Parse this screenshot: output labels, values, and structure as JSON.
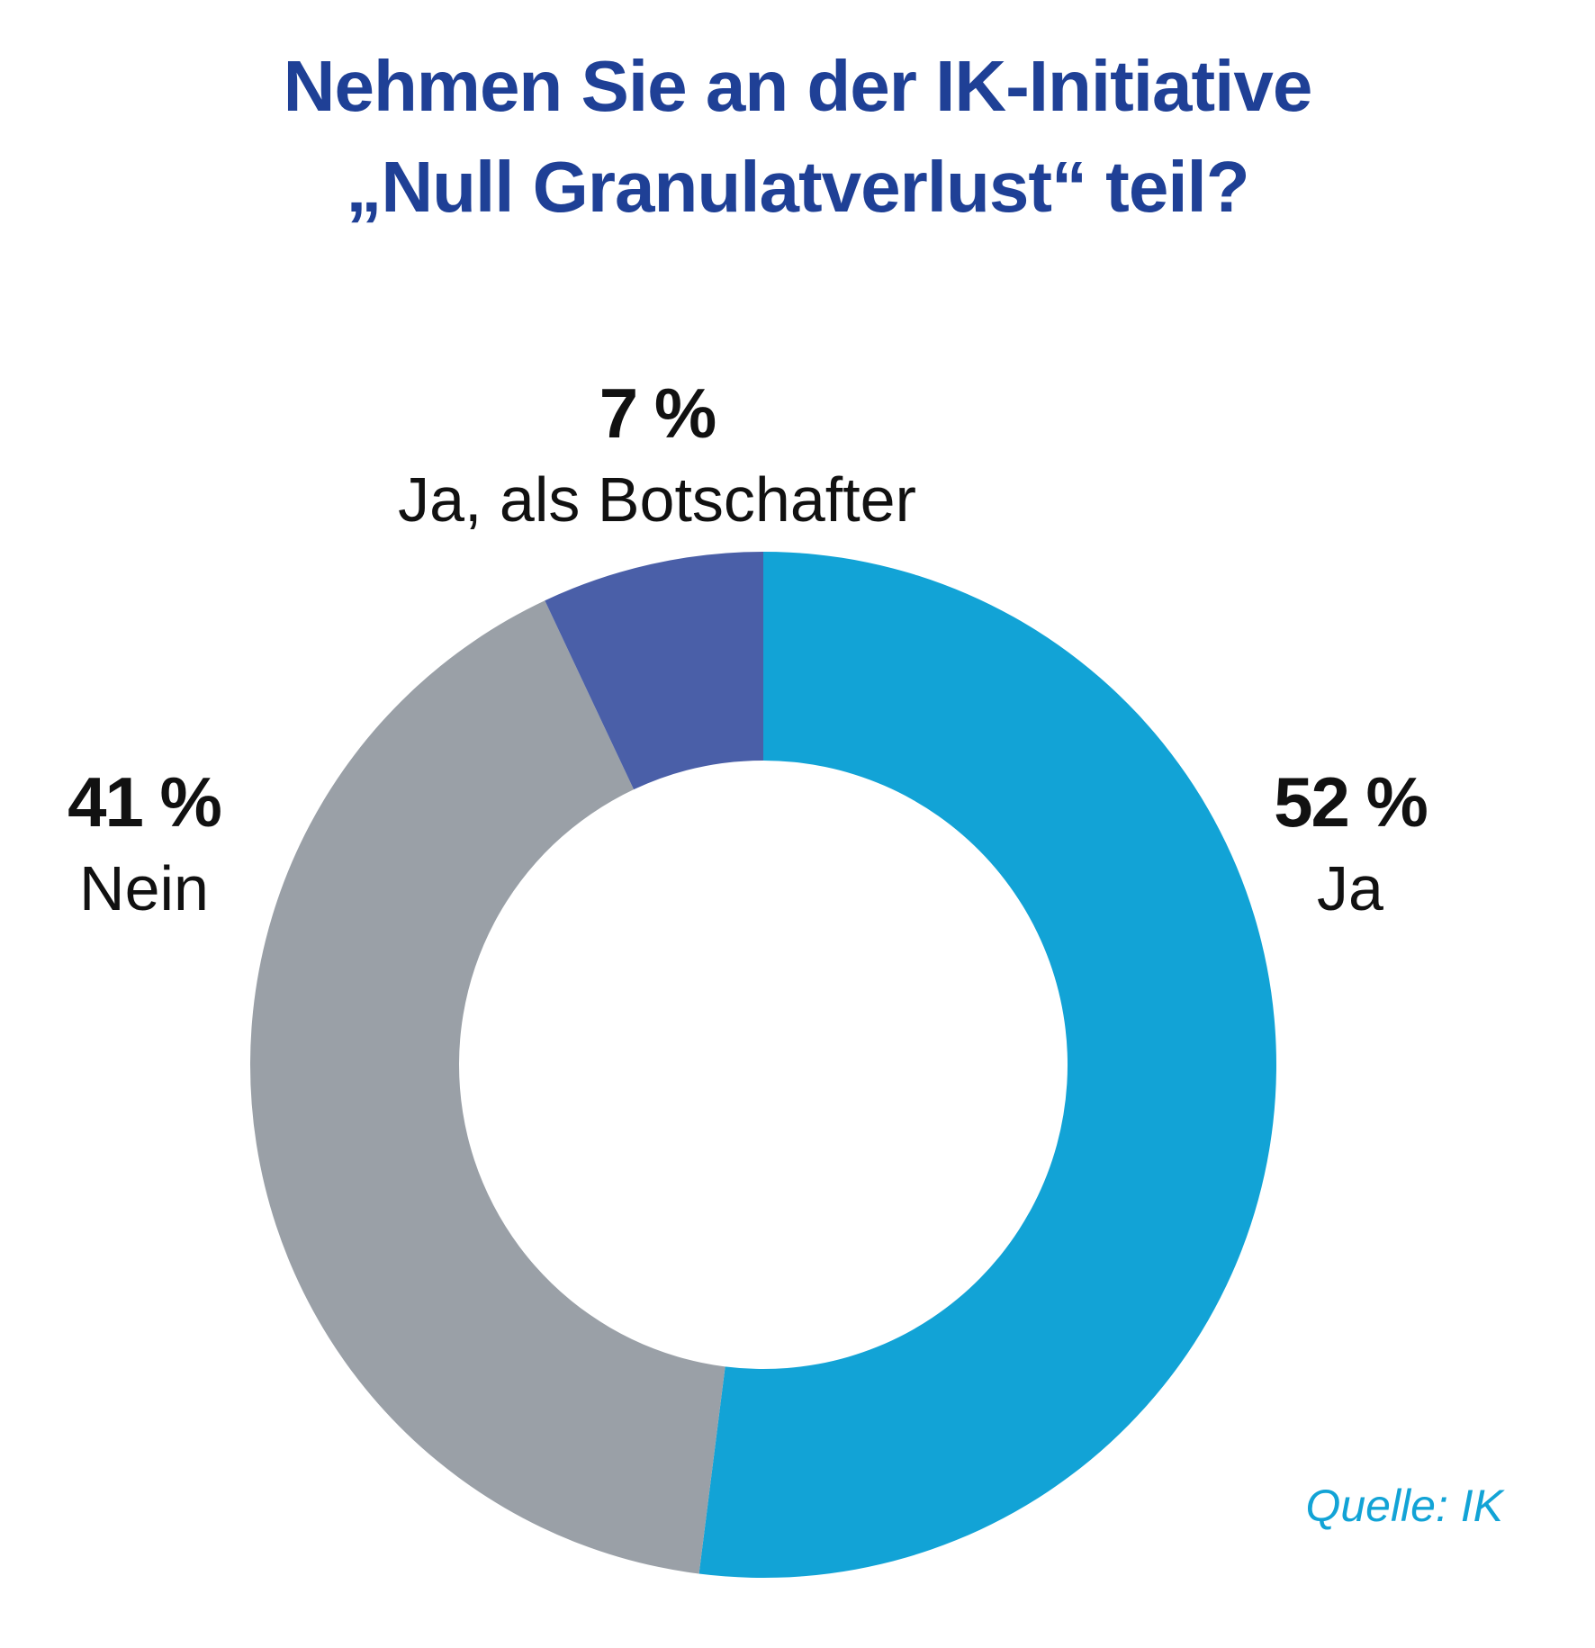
{
  "chart_data": {
    "type": "pie",
    "variant": "donut",
    "title_lines": [
      "Nehmen Sie an der IK-Initiative",
      "„Null Granulatverlust“ teil?"
    ],
    "slices": [
      {
        "category": "Ja",
        "value": 52,
        "label": "52 %",
        "color": "#12a3d6"
      },
      {
        "category": "Nein",
        "value": 41,
        "label": "41 %",
        "color": "#9aa0a7"
      },
      {
        "category": "Ja, als Botschafter",
        "value": 7,
        "label": "7 %",
        "color": "#4a5fa8"
      }
    ],
    "start": "12 o'clock",
    "direction": "clockwise",
    "source": "Quelle: IK"
  }
}
